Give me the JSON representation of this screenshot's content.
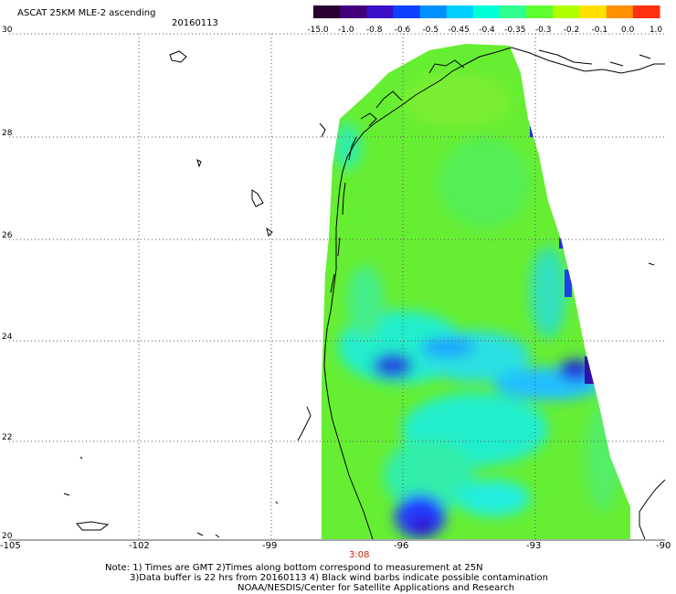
{
  "title": "ASCAT 25KM MLE-2 ascending",
  "date": "20160113",
  "y_labels": [
    "30",
    "28",
    "26",
    "24",
    "22",
    "20"
  ],
  "x_labels": [
    "-105",
    "-102",
    "-99",
    "-96",
    "-93",
    "-90"
  ],
  "time_label": "3:08",
  "colorbar": {
    "labels": [
      "-15.0",
      "-1.0",
      "-0.8",
      "-0.6",
      "-0.5",
      "-0.45",
      "-0.4",
      "-0.35",
      "-0.3",
      "-0.2",
      "-0.1",
      "0.0",
      "1.0"
    ],
    "colors": [
      "#2a0030",
      "#44007a",
      "#3a10c8",
      "#1040ff",
      "#0090ff",
      "#00d0ff",
      "#00ffd8",
      "#30ff90",
      "#60ff30",
      "#b0ff00",
      "#ffe000",
      "#ff9000",
      "#ff3010"
    ]
  },
  "notes": {
    "line1": "Note: 1) Times are GMT 2)Times along bottom correspond to measurement at 25N",
    "line2": "3)Data buffer is 22 hrs from 20160113 4) Black wind barbs indicate possible contamination",
    "line3": "NOAA/NESDIS/Center for Satellite Applications and Research"
  },
  "colors": {
    "grid": "#555555",
    "coast": "#000000",
    "ocean_main": "#66ee33",
    "ocean_cyan": "#22eecc",
    "ocean_blue": "#2030dd"
  }
}
